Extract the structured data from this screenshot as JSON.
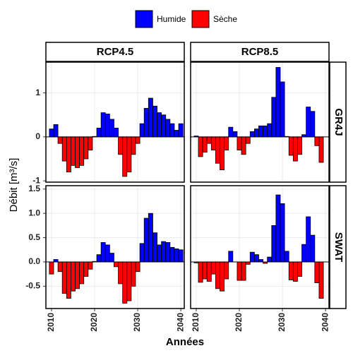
{
  "legend": [
    {
      "name": "Humide",
      "color": "#0000ff"
    },
    {
      "name": "Sèche",
      "color": "#ff0000"
    }
  ],
  "x_label": "Années",
  "y_label": "Débit [m³/s]",
  "facets": {
    "columns": [
      "RCP4.5",
      "RCP8.5"
    ],
    "rows": [
      "GR4J",
      "SWAT"
    ]
  },
  "chart_data": [
    {
      "type": "bar",
      "x": [
        2010,
        2011,
        2012,
        2013,
        2014,
        2015,
        2016,
        2017,
        2018,
        2019,
        2020,
        2021,
        2022,
        2023,
        2024,
        2025,
        2026,
        2027,
        2028,
        2029,
        2030,
        2031,
        2032,
        2033,
        2034,
        2035,
        2036,
        2037,
        2038,
        2039,
        2040
      ],
      "values": [
        0.18,
        0.28,
        -0.15,
        -0.55,
        -0.8,
        -0.65,
        -0.7,
        -0.65,
        -0.5,
        -0.3,
        0.01,
        0.2,
        0.55,
        0.52,
        0.4,
        0.2,
        -0.4,
        -0.9,
        -0.8,
        -0.4,
        -0.15,
        0.3,
        0.65,
        0.88,
        0.7,
        0.55,
        0.5,
        0.4,
        0.3,
        0.15,
        0.3
      ],
      "xlim": [
        2008.7,
        2040.8
      ],
      "xticks": [
        2010,
        2020,
        2030,
        2040
      ],
      "ylim": [
        -1.03,
        1.7
      ],
      "yticks": [
        -1,
        0,
        1
      ]
    },
    {
      "type": "bar",
      "x": [
        2010,
        2011,
        2012,
        2013,
        2014,
        2015,
        2016,
        2017,
        2018,
        2019,
        2020,
        2021,
        2022,
        2023,
        2024,
        2025,
        2026,
        2027,
        2028,
        2029,
        2030,
        2031,
        2032,
        2033,
        2034,
        2035,
        2036,
        2037,
        2038,
        2039,
        2040
      ],
      "values": [
        0.02,
        -0.45,
        -0.35,
        -0.15,
        -0.3,
        -0.6,
        -0.75,
        -0.3,
        0.22,
        0.12,
        -0.3,
        -0.4,
        -0.15,
        0.12,
        0.18,
        0.25,
        0.25,
        0.3,
        0.9,
        1.58,
        1.25,
        0.01,
        -0.42,
        -0.55,
        -0.4,
        0.05,
        0.68,
        0.58,
        -0.2,
        -0.58,
        0.0
      ],
      "xlim": [
        2008.7,
        2040.8
      ],
      "xticks": [
        2010,
        2020,
        2030,
        2040
      ],
      "ylim": [
        -1.03,
        1.7
      ],
      "yticks": [
        -1,
        0,
        1
      ]
    },
    {
      "type": "bar",
      "x": [
        2010,
        2011,
        2012,
        2013,
        2014,
        2015,
        2016,
        2017,
        2018,
        2019,
        2020,
        2021,
        2022,
        2023,
        2024,
        2025,
        2026,
        2027,
        2028,
        2029,
        2030,
        2031,
        2032,
        2033,
        2034,
        2035,
        2036,
        2037,
        2038,
        2039,
        2040
      ],
      "values": [
        -0.25,
        0.05,
        -0.2,
        -0.65,
        -0.75,
        -0.6,
        -0.55,
        -0.45,
        -0.3,
        -0.15,
        0.01,
        0.15,
        0.4,
        0.35,
        0.18,
        -0.1,
        -0.45,
        -0.85,
        -0.8,
        -0.5,
        -0.2,
        0.38,
        0.9,
        1.0,
        0.6,
        0.35,
        0.42,
        0.4,
        0.3,
        0.27,
        0.25
      ],
      "xlim": [
        2008.7,
        2040.8
      ],
      "xticks": [
        2010,
        2020,
        2030,
        2040
      ],
      "ylim": [
        -0.96,
        1.57
      ],
      "yticks": [
        -0.5,
        {
          "value": 0,
          "label": "0.0"
        },
        0.5,
        {
          "value": 1,
          "label": "1.0"
        },
        1.5
      ]
    },
    {
      "type": "bar",
      "x": [
        2010,
        2011,
        2012,
        2013,
        2014,
        2015,
        2016,
        2017,
        2018,
        2019,
        2020,
        2021,
        2022,
        2023,
        2024,
        2025,
        2026,
        2027,
        2028,
        2029,
        2030,
        2031,
        2032,
        2033,
        2034,
        2035,
        2036,
        2037,
        2038,
        2039,
        2040
      ],
      "values": [
        -0.02,
        -0.42,
        -0.35,
        -0.4,
        -0.25,
        -0.55,
        -0.6,
        -0.35,
        0.22,
        0.0,
        -0.38,
        -0.38,
        -0.05,
        0.2,
        0.15,
        0.05,
        -0.03,
        0.1,
        0.75,
        1.38,
        1.2,
        0.22,
        -0.37,
        -0.4,
        -0.3,
        0.36,
        0.93,
        0.55,
        -0.43,
        -0.75,
        0.0
      ],
      "xlim": [
        2008.7,
        2040.8
      ],
      "xticks": [
        2010,
        2020,
        2030,
        2040
      ],
      "ylim": [
        -0.96,
        1.57
      ],
      "yticks": [
        -0.5,
        {
          "value": 0,
          "label": "0.0"
        },
        0.5,
        {
          "value": 1,
          "label": "1.0"
        },
        1.5
      ]
    }
  ]
}
